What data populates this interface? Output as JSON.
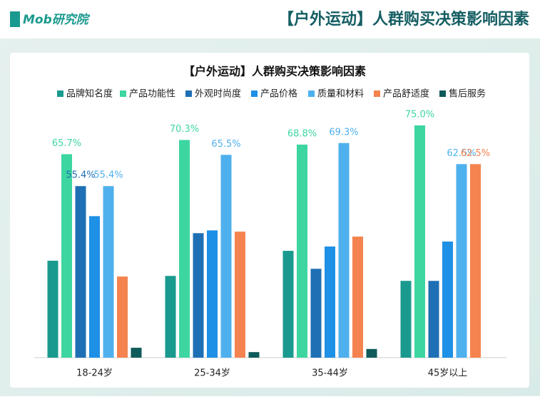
{
  "header": {
    "logo": "Mob研究院",
    "title": "【户外运动】人群购买决策影响因素"
  },
  "chart_data": {
    "type": "bar",
    "title": "【户外运动】人群购买决策影响因素",
    "categories": [
      "18-24岁",
      "25-34岁",
      "35-44岁",
      "45岁以上"
    ],
    "series": [
      {
        "name": "品牌知名度",
        "color": "#1a9a8e",
        "values": [
          31.3,
          26.4,
          34.5,
          24.8
        ],
        "value_labels": [
          null,
          null,
          null,
          null
        ]
      },
      {
        "name": "产品功能性",
        "color": "#3dd6a0",
        "values": [
          65.7,
          70.3,
          68.8,
          75.0
        ],
        "value_labels": [
          "65.7%",
          "70.3%",
          "68.8%",
          "75.0%"
        ]
      },
      {
        "name": "外观时尚度",
        "color": "#1f6fb5",
        "values": [
          55.4,
          40.2,
          28.7,
          24.8
        ],
        "value_labels": [
          "55.4%",
          null,
          null,
          null
        ]
      },
      {
        "name": "产品价格",
        "color": "#1e90e6",
        "values": [
          45.7,
          41.1,
          35.9,
          37.5
        ],
        "value_labels": [
          null,
          null,
          null,
          null
        ]
      },
      {
        "name": "质量和材料",
        "color": "#4fb0ee",
        "values": [
          55.4,
          65.5,
          69.3,
          62.5
        ],
        "value_labels": [
          "55.4%",
          "65.5%",
          "69.3%",
          "62.5%"
        ]
      },
      {
        "name": "产品舒适度",
        "color": "#f5834f",
        "values": [
          26.2,
          40.7,
          39.1,
          62.5
        ],
        "value_labels": [
          null,
          null,
          null,
          "62.5%"
        ]
      },
      {
        "name": "售后服务",
        "color": "#0f5a5a",
        "values": [
          3.2,
          1.8,
          2.8,
          0
        ],
        "value_labels": [
          null,
          null,
          null,
          null
        ]
      }
    ]
  }
}
